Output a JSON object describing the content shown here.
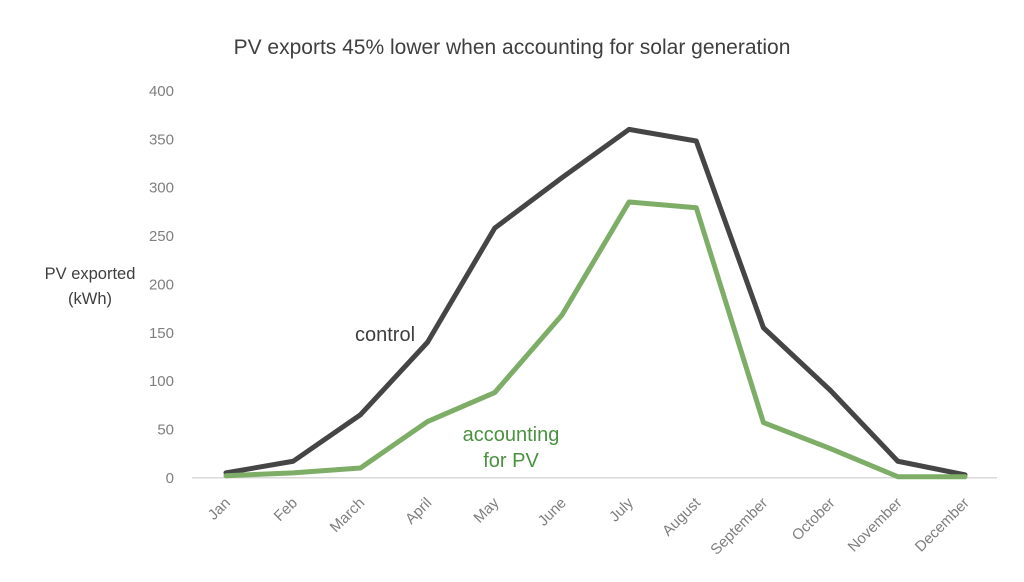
{
  "chart_data": {
    "type": "line",
    "title": "PV exports 45% lower when accounting for solar generation",
    "title_color": "#3f3f3f",
    "ylabel": "PV exported (kWh)",
    "ylabel_line1": "PV exported",
    "ylabel_line2": "(kWh)",
    "xlabel": "",
    "categories": [
      "Jan",
      "Feb",
      "March",
      "April",
      "May",
      "June",
      "July",
      "August",
      "September",
      "October",
      "November",
      "December"
    ],
    "series": [
      {
        "name": "control",
        "label": "control",
        "color": "#454545",
        "label_color": "#3f3f3f",
        "values": [
          5,
          17,
          65,
          140,
          258,
          310,
          360,
          348,
          155,
          90,
          17,
          3
        ]
      },
      {
        "name": "accounting for PV",
        "label": "accounting for PV",
        "color": "#7ead67",
        "label_color": "#4a9240",
        "values": [
          2,
          5,
          10,
          58,
          88,
          168,
          285,
          279,
          57,
          30,
          1,
          1
        ]
      }
    ],
    "y_ticks": [
      0,
      50,
      100,
      150,
      200,
      250,
      300,
      350,
      400
    ],
    "ylim": [
      0,
      400
    ],
    "grid": false,
    "legend": "inline-text-labels",
    "axis_line_color": "#d9d9d9",
    "tick_label_color": "#7f7f7f"
  },
  "labels": {
    "accounting_line1": "accounting",
    "accounting_line2": "for PV"
  }
}
